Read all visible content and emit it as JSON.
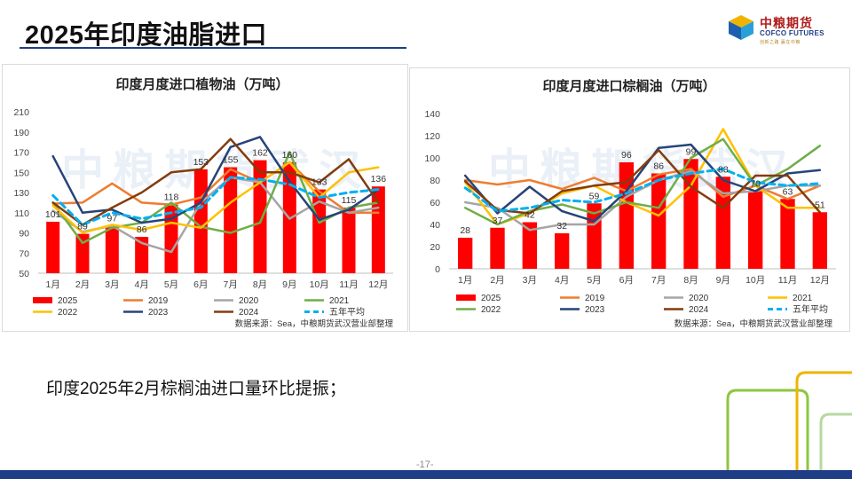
{
  "page": {
    "title": "2025年印度油脂进口",
    "note": "印度2025年2月棕榈油进口量环比提振；",
    "page_number": "-17-",
    "logo": {
      "cn": "中粮期货",
      "en": "COFCO FUTURES",
      "tagline": "创新之路 赢在中粮"
    },
    "watermark": "中粮期货武汉"
  },
  "chart_data": [
    {
      "type": "bar+line",
      "title": "印度月度进口植物油（万吨）",
      "source": "数据来源：Sea，中粮期货武汉营业部整理",
      "categories": [
        "1月",
        "2月",
        "3月",
        "4月",
        "5月",
        "6月",
        "7月",
        "8月",
        "9月",
        "10月",
        "11月",
        "12月"
      ],
      "ylim": [
        50,
        210
      ],
      "yticks": [
        50,
        70,
        90,
        110,
        130,
        150,
        170,
        190,
        210
      ],
      "bar": {
        "name": "2025",
        "color": "#ff0000",
        "values": [
          101,
          89,
          97,
          86,
          118,
          153,
          155,
          162,
          160,
          133,
          115,
          136
        ]
      },
      "series": [
        {
          "name": "2019",
          "color": "#ed7d31",
          "style": "solid",
          "values": [
            119,
            120,
            139,
            120,
            118,
            125,
            153,
            140,
            160,
            131,
            110,
            110
          ]
        },
        {
          "name": "2020",
          "color": "#a5a5a5",
          "style": "solid",
          "values": [
            112,
            91,
            97,
            80,
            71,
            120,
            145,
            140,
            104,
            121,
            110,
            115
          ]
        },
        {
          "name": "2021",
          "color": "#70ad47",
          "style": "solid",
          "values": [
            120,
            80,
            95,
            100,
            120,
            96,
            90,
            100,
            170,
            100,
            115,
            120
          ]
        },
        {
          "name": "2022",
          "color": "#ffc000",
          "style": "solid",
          "values": [
            117,
            90,
            98,
            93,
            100,
            95,
            120,
            140,
            160,
            125,
            150,
            155
          ]
        },
        {
          "name": "2023",
          "color": "#264478",
          "style": "solid",
          "values": [
            166,
            110,
            113,
            100,
            104,
            120,
            175,
            185,
            141,
            103,
            113,
            133
          ]
        },
        {
          "name": "2024",
          "color": "#843c0c",
          "style": "solid",
          "values": [
            120,
            98,
            115,
            130,
            150,
            153,
            183,
            150,
            150,
            140,
            163,
            120
          ]
        },
        {
          "name": "五年平均",
          "color": "#00b0f0",
          "style": "dashed",
          "values": [
            127,
            98,
            110,
            104,
            110,
            115,
            145,
            143,
            138,
            125,
            130,
            133
          ]
        }
      ]
    },
    {
      "type": "bar+line",
      "title": "印度月度进口棕榈油（万吨）",
      "source": "数据来源：Sea，中粮期货武汉营业部整理",
      "categories": [
        "1月",
        "2月",
        "3月",
        "4月",
        "5月",
        "6月",
        "7月",
        "8月",
        "9月",
        "10月",
        "11月",
        "12月"
      ],
      "ylim": [
        0,
        140
      ],
      "yticks": [
        0,
        20,
        40,
        60,
        80,
        100,
        120,
        140
      ],
      "bar": {
        "name": "2025",
        "color": "#ff0000",
        "values": [
          28,
          37,
          42,
          32,
          59,
          96,
          86,
          99,
          83,
          70,
          63,
          51
        ]
      },
      "series": [
        {
          "name": "2019",
          "color": "#ed7d31",
          "style": "solid",
          "values": [
            80,
            76,
            80,
            72,
            82,
            70,
            85,
            90,
            65,
            75,
            63,
            75
          ]
        },
        {
          "name": "2020",
          "color": "#a5a5a5",
          "style": "solid",
          "values": [
            60,
            55,
            35,
            40,
            40,
            65,
            80,
            88,
            68,
            70,
            75,
            75
          ]
        },
        {
          "name": "2021",
          "color": "#ffc000",
          "style": "solid",
          "values": [
            78,
            40,
            50,
            68,
            75,
            60,
            48,
            75,
            126,
            75,
            55,
            55
          ]
        },
        {
          "name": "2022",
          "color": "#70ad47",
          "style": "solid",
          "values": [
            55,
            40,
            52,
            58,
            50,
            60,
            55,
            100,
            117,
            75,
            90,
            111
          ]
        },
        {
          "name": "2023",
          "color": "#264478",
          "style": "solid",
          "values": [
            84,
            50,
            74,
            52,
            43,
            70,
            109,
            112,
            80,
            70,
            86,
            89
          ]
        },
        {
          "name": "2024",
          "color": "#843c0c",
          "style": "solid",
          "values": [
            79,
            53,
            50,
            70,
            75,
            78,
            107,
            74,
            55,
            84,
            84,
            51
          ]
        },
        {
          "name": "五年平均",
          "color": "#00b0f0",
          "style": "dashed",
          "values": [
            73,
            52,
            55,
            62,
            60,
            68,
            80,
            86,
            90,
            78,
            75,
            77
          ]
        }
      ]
    }
  ]
}
